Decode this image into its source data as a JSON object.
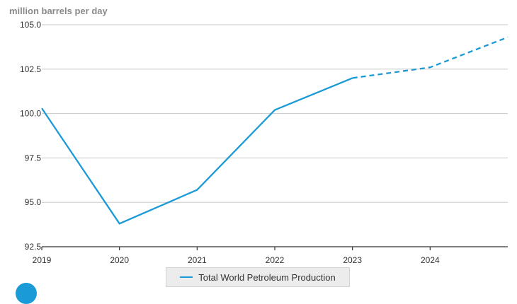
{
  "chart_data": {
    "type": "line",
    "ylabel": "million barrels per day",
    "x": [
      2019,
      2020,
      2021,
      2022,
      2023,
      2024,
      2025
    ],
    "x_tick_labels": [
      "2019",
      "2020",
      "2021",
      "2022",
      "2023",
      "2024"
    ],
    "y_tick_labels": [
      "105.0",
      "102.5",
      "100.0",
      "97.5",
      "95.0",
      "92.5"
    ],
    "ylim": [
      92.5,
      105.0
    ],
    "xlim": [
      2019,
      2025
    ],
    "grid": true,
    "legend_position": "bottom",
    "series": [
      {
        "name": "Total World Petroleum Production",
        "color": "#1a9ad6",
        "historical": {
          "x": [
            2019,
            2020,
            2021,
            2022,
            2023
          ],
          "values": [
            100.3,
            93.8,
            95.7,
            100.2,
            102.0
          ]
        },
        "forecast": {
          "x": [
            2023,
            2024,
            2025
          ],
          "values": [
            102.0,
            102.6,
            104.3
          ]
        }
      }
    ]
  },
  "legend": {
    "label": "Total World Petroleum Production"
  },
  "colors": {
    "series": "#1a9ad6",
    "grid": "#c8c8c8",
    "axis": "#333333",
    "unit_label": "#8a8a8a"
  }
}
